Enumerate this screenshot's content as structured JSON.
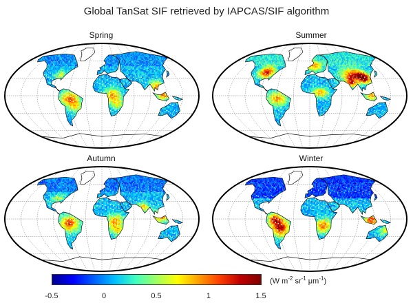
{
  "title": "Global TanSat SIF retrieved by IAPCAS/SIF algorithm",
  "panels": [
    {
      "label": "Spring",
      "season": "spring"
    },
    {
      "label": "Summer",
      "season": "summer"
    },
    {
      "label": "Autumn",
      "season": "autumn"
    },
    {
      "label": "Winter",
      "season": "winter"
    }
  ],
  "colorbar": {
    "min": -0.5,
    "max": 1.5,
    "ticks": [
      "-0.5",
      "0",
      "0.5",
      "1",
      "1.5"
    ],
    "tick_values": [
      -0.5,
      0,
      0.5,
      1,
      1.5
    ],
    "units_prefix": "(W m",
    "units_exp1": "-2",
    "units_mid": " sr",
    "units_exp2": "-1",
    "units_mu": " μm",
    "units_exp3": "-1",
    "units_suffix": ")",
    "colormap": "jet"
  },
  "colors": {
    "land_low": "#3aa0ff",
    "land_mid": "#8cd0b0",
    "land_high": "#e8a030",
    "land_peak": "#c01818",
    "coast": "#111111",
    "grid": "#7a7a7a"
  }
}
